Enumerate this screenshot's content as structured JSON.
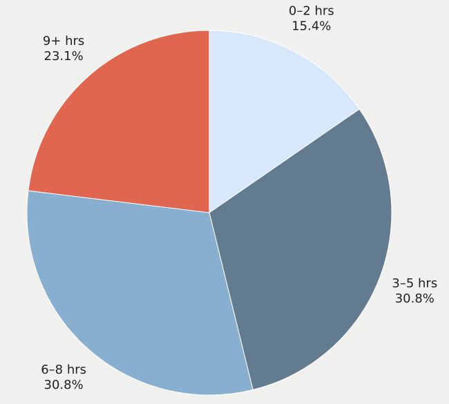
{
  "chart_data": {
    "type": "pie",
    "start_angle": "12 o'clock",
    "direction": "clockwise",
    "background": "#f0f1ef",
    "slices": [
      {
        "label": "0–2 hrs",
        "value": 15.4,
        "pct_label": "15.4%",
        "color": "#d8e8fa"
      },
      {
        "label": "3–5 hrs",
        "value": 30.8,
        "pct_label": "30.8%",
        "color": "#637b8e"
      },
      {
        "label": "6–8 hrs",
        "value": 30.8,
        "pct_label": "30.8%",
        "color": "#88afd0"
      },
      {
        "label": "9+ hrs",
        "value": 23.1,
        "pct_label": "23.1%",
        "color": "#e06650"
      }
    ]
  }
}
